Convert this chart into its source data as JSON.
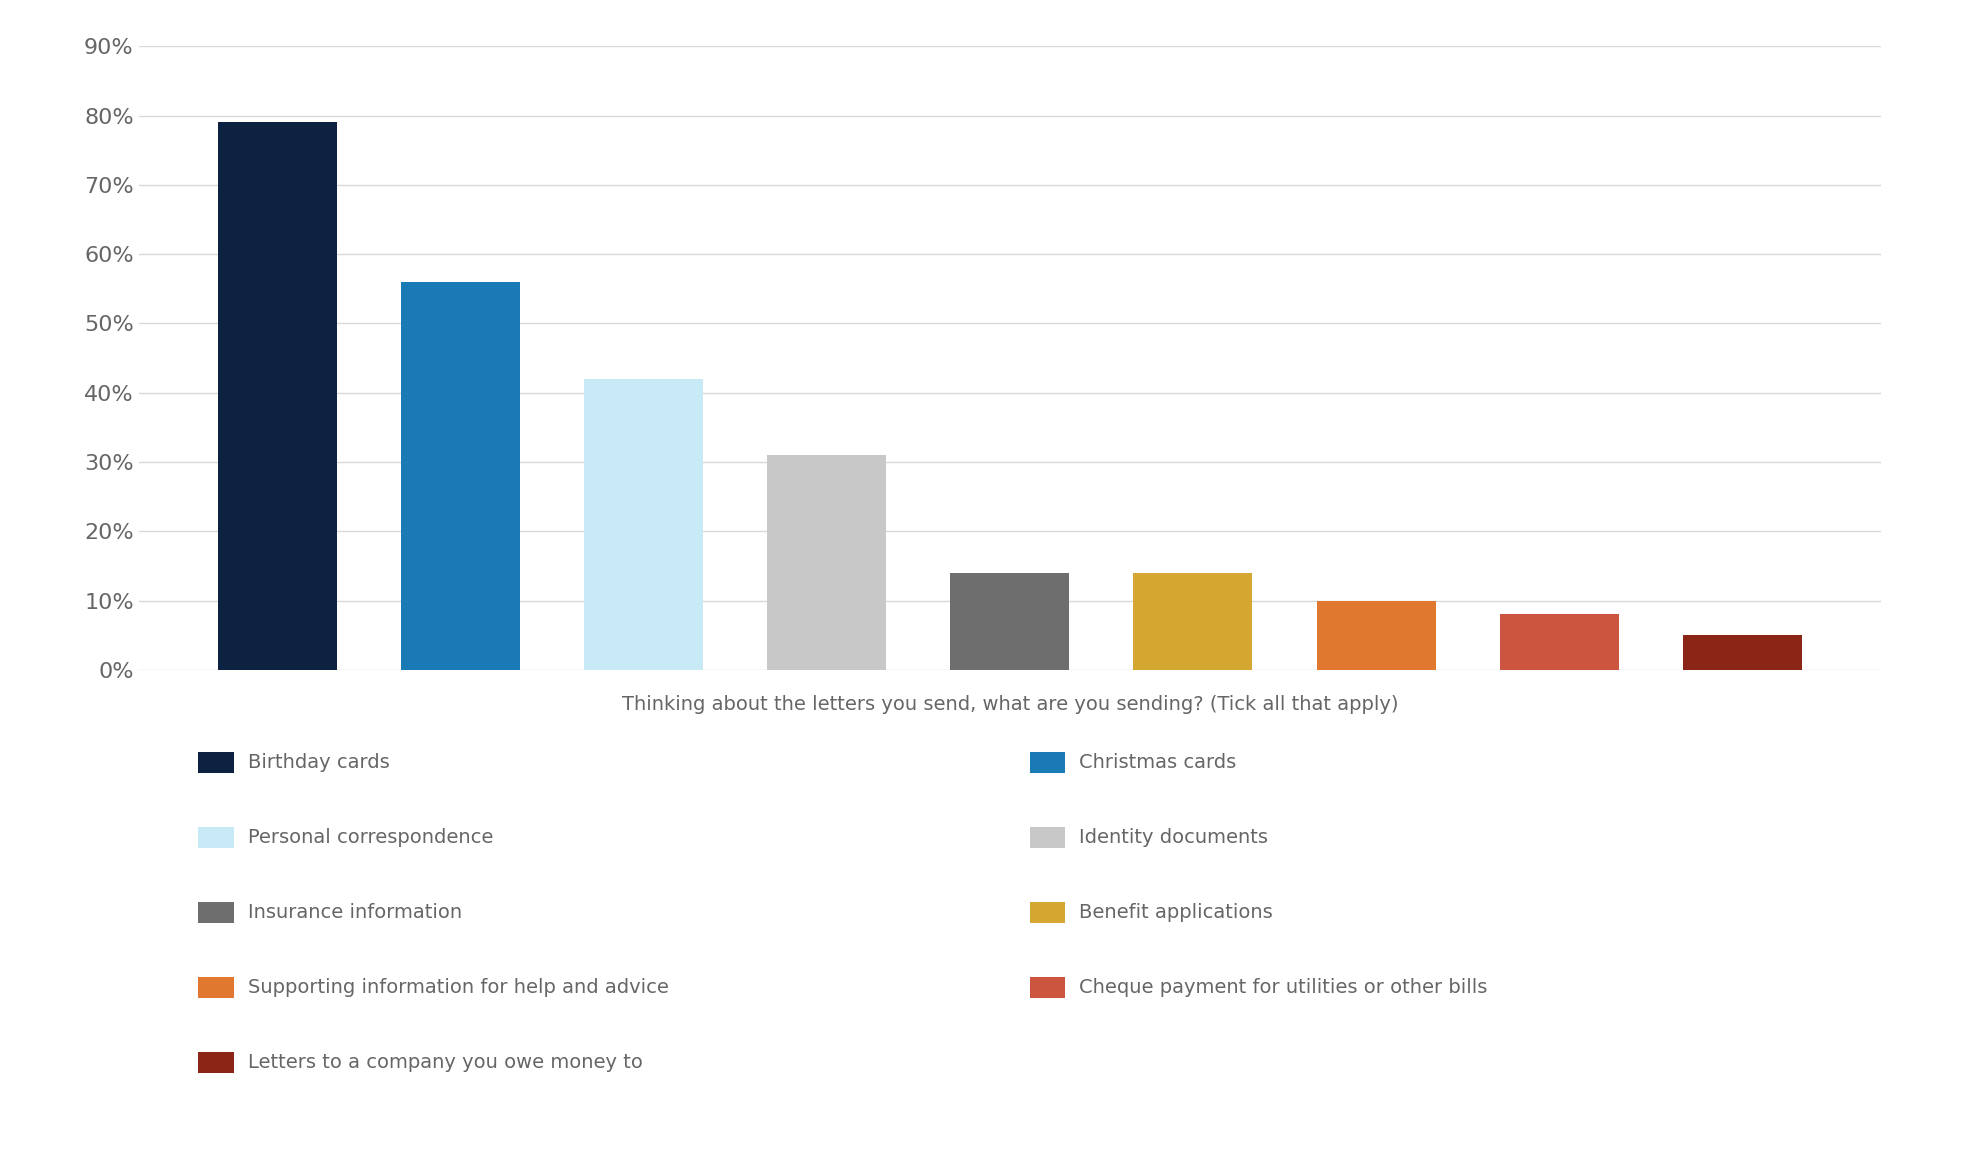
{
  "values": [
    0.79,
    0.56,
    0.42,
    0.31,
    0.14,
    0.14,
    0.1,
    0.08,
    0.05
  ],
  "bar_colors": [
    "#0d2240",
    "#1a7ab5",
    "#c8eaf7",
    "#c8c8c8",
    "#6e6e6e",
    "#d4a830",
    "#e07830",
    "#cc5540",
    "#8b2515"
  ],
  "xlabel": "Thinking about the letters you send, what are you sending? (Tick all that apply)",
  "ylim": [
    0,
    0.9
  ],
  "yticks": [
    0.0,
    0.1,
    0.2,
    0.3,
    0.4,
    0.5,
    0.6,
    0.7,
    0.8,
    0.9
  ],
  "background_color": "#ffffff",
  "grid_color": "#d8d8d8",
  "legend_labels_col1": [
    "Birthday cards",
    "Personal correspondence",
    "Insurance information",
    "Supporting information for help and advice",
    "Letters to a company you owe money to"
  ],
  "legend_labels_col2": [
    "Christmas cards",
    "Identity documents",
    "Benefit applications",
    "Cheque payment for utilities or other bills"
  ],
  "legend_colors_col1": [
    "#0d2240",
    "#c8eaf7",
    "#6e6e6e",
    "#e07830",
    "#8b2515"
  ],
  "legend_colors_col2": [
    "#1a7ab5",
    "#c8c8c8",
    "#d4a830",
    "#cc5540"
  ],
  "xlabel_fontsize": 14,
  "tick_fontsize": 16,
  "legend_fontsize": 14
}
